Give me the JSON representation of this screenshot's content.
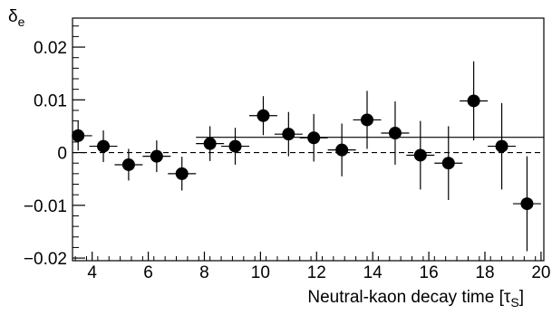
{
  "chart_data": {
    "type": "scatter",
    "title": "",
    "xlabel": "Neutral-kaon decay time [τS]",
    "ylabel": "δe",
    "xlim": [
      3.3,
      20.1
    ],
    "ylim": [
      -0.0205,
      0.0255
    ],
    "x_ticks": [
      4,
      6,
      8,
      10,
      12,
      14,
      16,
      18,
      20
    ],
    "x_tick_labels": [
      "4",
      "6",
      "8",
      "10",
      "12",
      "14",
      "16",
      "18",
      "20"
    ],
    "y_ticks": [
      0.02,
      0.01,
      0,
      -0.01,
      -0.02
    ],
    "y_tick_labels": [
      "0.02",
      "0.01",
      "0",
      "−0.01",
      "−0.02"
    ],
    "points": [
      {
        "x": 3.5,
        "y": 0.0032,
        "xerr": 0.5,
        "yerr": 0.0028
      },
      {
        "x": 4.4,
        "y": 0.0012,
        "xerr": 0.5,
        "yerr": 0.003
      },
      {
        "x": 5.3,
        "y": -0.0023,
        "xerr": 0.5,
        "yerr": 0.003
      },
      {
        "x": 6.3,
        "y": -0.0007,
        "xerr": 0.5,
        "yerr": 0.003
      },
      {
        "x": 7.2,
        "y": -0.004,
        "xerr": 0.5,
        "yerr": 0.0032
      },
      {
        "x": 8.2,
        "y": 0.0017,
        "xerr": 0.5,
        "yerr": 0.0033
      },
      {
        "x": 9.1,
        "y": 0.0012,
        "xerr": 0.5,
        "yerr": 0.0035
      },
      {
        "x": 10.1,
        "y": 0.007,
        "xerr": 0.5,
        "yerr": 0.0037
      },
      {
        "x": 11.0,
        "y": 0.0035,
        "xerr": 0.5,
        "yerr": 0.0042
      },
      {
        "x": 11.9,
        "y": 0.0028,
        "xerr": 0.5,
        "yerr": 0.0045
      },
      {
        "x": 12.9,
        "y": 0.0005,
        "xerr": 0.5,
        "yerr": 0.005
      },
      {
        "x": 13.8,
        "y": 0.0062,
        "xerr": 0.5,
        "yerr": 0.0055
      },
      {
        "x": 14.8,
        "y": 0.0037,
        "xerr": 0.5,
        "yerr": 0.006
      },
      {
        "x": 15.7,
        "y": -0.0005,
        "xerr": 0.5,
        "yerr": 0.0065
      },
      {
        "x": 16.7,
        "y": -0.002,
        "xerr": 0.5,
        "yerr": 0.007
      },
      {
        "x": 17.6,
        "y": 0.0098,
        "xerr": 0.5,
        "yerr": 0.0075
      },
      {
        "x": 18.6,
        "y": 0.0012,
        "xerr": 0.5,
        "yerr": 0.0082
      },
      {
        "x": 19.5,
        "y": -0.0097,
        "xerr": 0.5,
        "yerr": 0.009
      }
    ],
    "fit_line": {
      "x_start": 7.7,
      "x_end": 20.1,
      "y": 0.0029
    },
    "zero_line": {
      "y": 0,
      "style": "dashed"
    },
    "grid": false,
    "legend": "none"
  }
}
